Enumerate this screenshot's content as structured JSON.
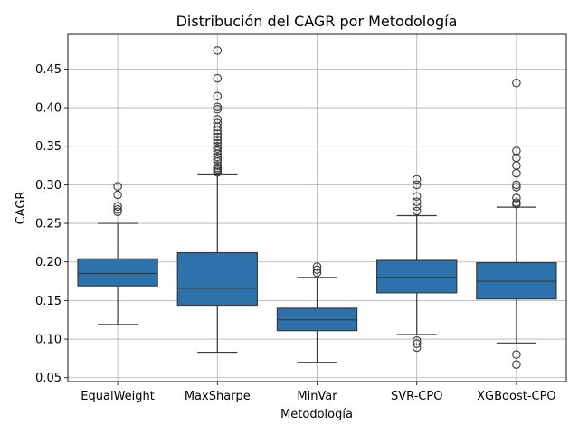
{
  "chart_data": {
    "type": "boxplot",
    "title": "Distribución del CAGR por Metodología",
    "xlabel": "Metodología",
    "ylabel": "CAGR",
    "ylim": [
      0.045,
      0.495
    ],
    "yticks": [
      0.05,
      0.1,
      0.15,
      0.2,
      0.25,
      0.3,
      0.35,
      0.4,
      0.45
    ],
    "ytick_labels": [
      "0.05",
      "0.10",
      "0.15",
      "0.20",
      "0.25",
      "0.30",
      "0.35",
      "0.40",
      "0.45"
    ],
    "grid": true,
    "box_color": "#2c72ad",
    "line_color": "#3a3a3a",
    "categories": [
      "EqualWeight",
      "MaxSharpe",
      "MinVar",
      "SVR-CPO",
      "XGBoost-CPO"
    ],
    "boxes": [
      {
        "category": "EqualWeight",
        "whisker_low": 0.119,
        "q1": 0.169,
        "median": 0.185,
        "q3": 0.204,
        "whisker_high": 0.25,
        "outliers": [
          0.265,
          0.268,
          0.272,
          0.287,
          0.298
        ]
      },
      {
        "category": "MaxSharpe",
        "whisker_low": 0.083,
        "q1": 0.144,
        "median": 0.166,
        "q3": 0.212,
        "whisker_high": 0.314,
        "outliers": [
          0.316,
          0.318,
          0.32,
          0.322,
          0.325,
          0.33,
          0.333,
          0.336,
          0.34,
          0.344,
          0.347,
          0.35,
          0.354,
          0.358,
          0.362,
          0.366,
          0.37,
          0.375,
          0.38,
          0.385,
          0.398,
          0.401,
          0.415,
          0.438,
          0.474
        ]
      },
      {
        "category": "MinVar",
        "whisker_low": 0.07,
        "q1": 0.111,
        "median": 0.125,
        "q3": 0.14,
        "whisker_high": 0.18,
        "outliers": [
          0.186,
          0.19,
          0.194
        ]
      },
      {
        "category": "SVR-CPO",
        "whisker_low": 0.106,
        "q1": 0.16,
        "median": 0.18,
        "q3": 0.202,
        "whisker_high": 0.26,
        "outliers": [
          0.089,
          0.094,
          0.098,
          0.266,
          0.272,
          0.278,
          0.285,
          0.3,
          0.307
        ]
      },
      {
        "category": "XGBoost-CPO",
        "whisker_low": 0.095,
        "q1": 0.152,
        "median": 0.175,
        "q3": 0.199,
        "whisker_high": 0.271,
        "outliers": [
          0.067,
          0.08,
          0.275,
          0.277,
          0.283,
          0.297,
          0.3,
          0.315,
          0.325,
          0.335,
          0.344,
          0.432
        ]
      }
    ]
  }
}
